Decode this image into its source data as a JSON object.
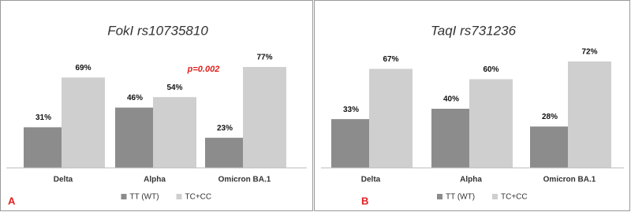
{
  "chart_data": [
    {
      "type": "bar",
      "title": "FokI rs10735810",
      "panel": "A",
      "annotation": "p=0.002",
      "categories": [
        "Delta",
        "Alpha",
        "Omicron  BA.1"
      ],
      "series": [
        {
          "name": "TT (WT)",
          "color": "#8c8c8c",
          "values": [
            31,
            46,
            23
          ],
          "value_labels": [
            "31%",
            "46%",
            "23%"
          ]
        },
        {
          "name": "TC+CC",
          "color": "#cfcfcf",
          "values": [
            69,
            54,
            77
          ],
          "value_labels": [
            "69%",
            "54%",
            "77%"
          ]
        }
      ]
    },
    {
      "type": "bar",
      "title": "TaqI rs731236",
      "panel": "B",
      "categories": [
        "Delta",
        "Alpha",
        "Omicron  BA.1"
      ],
      "series": [
        {
          "name": "TT (WT)",
          "color": "#8c8c8c",
          "values": [
            33,
            40,
            28
          ],
          "value_labels": [
            "33%",
            "40%",
            "28%"
          ]
        },
        {
          "name": "TC+CC",
          "color": "#cfcfcf",
          "values": [
            67,
            60,
            72
          ],
          "value_labels": [
            "67%",
            "60%",
            "72%"
          ]
        }
      ]
    }
  ]
}
